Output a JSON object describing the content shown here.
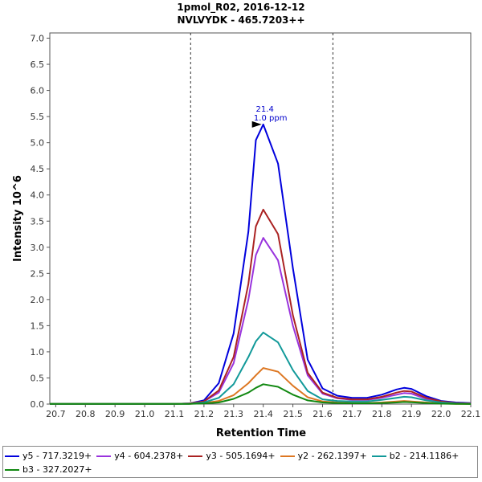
{
  "chart_data": {
    "type": "line",
    "title": "1pmol_R02, 2016-12-12",
    "subtitle": "NVLVYDK - 465.7203++",
    "xlabel": "Retention Time",
    "ylabel": "Intensity 10^6",
    "xlim": [
      20.68,
      22.1
    ],
    "ylim": [
      0,
      7.1
    ],
    "x_ticks": [
      "20.7",
      "20.8",
      "20.9",
      "21.0",
      "21.1",
      "21.2",
      "21.3",
      "21.4",
      "21.5",
      "21.6",
      "21.7",
      "21.8",
      "21.9",
      "22.0",
      "22.1"
    ],
    "y_ticks": [
      "0.0",
      "0.5",
      "1.0",
      "1.5",
      "2.0",
      "2.5",
      "3.0",
      "3.5",
      "4.0",
      "4.5",
      "5.0",
      "5.5",
      "6.0",
      "6.5",
      "7.0"
    ],
    "integration_boundaries": [
      21.155,
      21.635
    ],
    "peak_annotation": {
      "x": 21.4,
      "y": 5.35,
      "label_rt": "21.4",
      "label_ppm": "1.0 ppm"
    },
    "x": [
      20.68,
      21.1,
      21.15,
      21.2,
      21.25,
      21.3,
      21.35,
      21.375,
      21.4,
      21.45,
      21.5,
      21.55,
      21.6,
      21.65,
      21.7,
      21.75,
      21.8,
      21.85,
      21.875,
      21.9,
      21.95,
      22.0,
      22.05,
      22.1
    ],
    "series": [
      {
        "name": "y5 - 717.3219+",
        "color": "#0000dd",
        "values": [
          0.005,
          0.005,
          0.01,
          0.07,
          0.4,
          1.35,
          3.3,
          5.05,
          5.35,
          4.6,
          2.6,
          0.85,
          0.3,
          0.16,
          0.12,
          0.12,
          0.18,
          0.28,
          0.31,
          0.29,
          0.15,
          0.06,
          0.03,
          0.02
        ]
      },
      {
        "name": "y4 - 604.2378+",
        "color": "#9933dd",
        "values": [
          0.005,
          0.005,
          0.01,
          0.05,
          0.22,
          0.78,
          2.0,
          2.85,
          3.18,
          2.75,
          1.5,
          0.55,
          0.2,
          0.11,
          0.08,
          0.08,
          0.12,
          0.18,
          0.21,
          0.2,
          0.1,
          0.04,
          0.02,
          0.01
        ]
      },
      {
        "name": "y3 - 505.1694+",
        "color": "#aa2222",
        "values": [
          0.005,
          0.005,
          0.01,
          0.05,
          0.26,
          0.9,
          2.3,
          3.4,
          3.72,
          3.25,
          1.7,
          0.6,
          0.22,
          0.12,
          0.09,
          0.09,
          0.14,
          0.22,
          0.25,
          0.24,
          0.12,
          0.05,
          0.02,
          0.01
        ]
      },
      {
        "name": "y2 - 262.1397+",
        "color": "#dd7722",
        "values": [
          0.003,
          0.003,
          0.005,
          0.02,
          0.06,
          0.17,
          0.4,
          0.55,
          0.69,
          0.62,
          0.35,
          0.13,
          0.05,
          0.03,
          0.02,
          0.02,
          0.03,
          0.05,
          0.06,
          0.05,
          0.03,
          0.01,
          0.005,
          0.003
        ]
      },
      {
        "name": "b2 - 214.1186+",
        "color": "#119999",
        "values": [
          0.003,
          0.003,
          0.005,
          0.03,
          0.12,
          0.38,
          0.9,
          1.2,
          1.37,
          1.18,
          0.65,
          0.25,
          0.09,
          0.06,
          0.05,
          0.05,
          0.08,
          0.12,
          0.14,
          0.13,
          0.07,
          0.03,
          0.01,
          0.005
        ]
      },
      {
        "name": "b3 - 327.2027+",
        "color": "#118811",
        "values": [
          0.003,
          0.003,
          0.005,
          0.01,
          0.03,
          0.1,
          0.22,
          0.31,
          0.38,
          0.33,
          0.18,
          0.07,
          0.03,
          0.02,
          0.015,
          0.015,
          0.02,
          0.03,
          0.04,
          0.035,
          0.02,
          0.008,
          0.004,
          0.002
        ]
      }
    ]
  }
}
